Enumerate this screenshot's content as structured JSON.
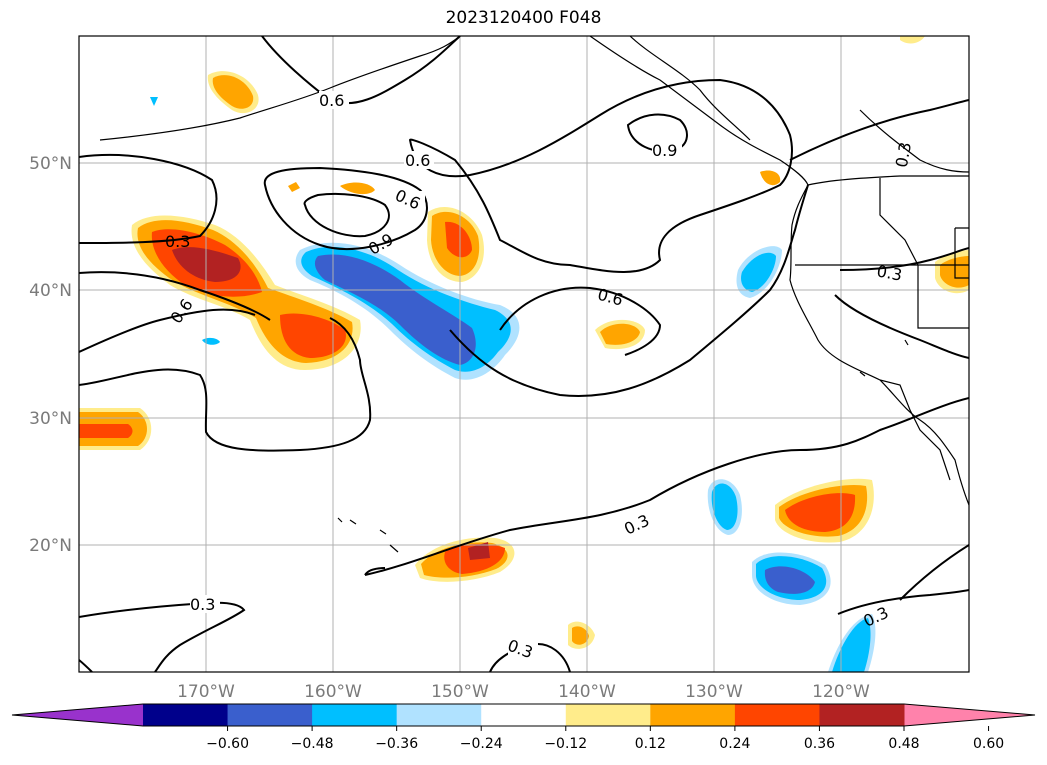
{
  "title": "2023120400 F048",
  "map": {
    "projection": "PlateCarree",
    "lon_range": [
      -180,
      -110
    ],
    "lat_range": [
      10,
      60
    ],
    "lat_labels": [
      "50°N",
      "40°N",
      "30°N",
      "20°N"
    ],
    "lon_labels": [
      "170°W",
      "160°W",
      "150°W",
      "140°W",
      "130°W",
      "120°W"
    ]
  },
  "colorbar": {
    "ticks": [
      "−0.60",
      "−0.48",
      "−0.36",
      "−0.24",
      "−0.12",
      "0.12",
      "0.24",
      "0.36",
      "0.48",
      "0.60"
    ],
    "colors": [
      "#9932cc",
      "#00008b",
      "#3a5fcd",
      "#00bfff",
      "#b0e2ff",
      "#ffffff",
      "#ffec8b",
      "#ffa500",
      "#ff4500",
      "#b22222",
      "#ff82ab"
    ],
    "extend": "both"
  },
  "contours": {
    "color": "#000000",
    "labels": [
      "0.6",
      "0.6",
      "0.9",
      "0.3",
      "0.6",
      "0.6",
      "0.9",
      "0.3",
      "0.6",
      "0.3",
      "0.3",
      "0.3",
      "0.3",
      "0.3",
      "0.6"
    ]
  }
}
